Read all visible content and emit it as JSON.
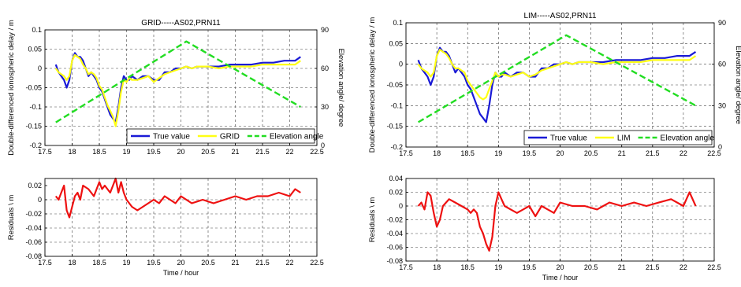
{
  "chart_data": [
    {
      "type": "line",
      "panel": "left-top",
      "title": "GRID-----AS02,PRN11",
      "xlabel": "",
      "ylabel": "Double-differenced ionospheric delay / m",
      "ylabel_right": "Elevation angle/ degree",
      "xlim": [
        17.5,
        22.5
      ],
      "ylim": [
        -0.2,
        0.1
      ],
      "ylim_right": [
        0,
        90
      ],
      "xticks": [
        "17.5",
        "18",
        "18.5",
        "19",
        "19.5",
        "20",
        "20.5",
        "21",
        "21.5",
        "22",
        "22.5"
      ],
      "yticks": [
        "-0.2",
        "-0.15",
        "-0.1",
        "-0.05",
        "0",
        "0.05",
        "0.1"
      ],
      "yticks_right": [
        "0",
        "30",
        "60",
        "90"
      ],
      "grid": true,
      "legend_position": "bottom-right",
      "series": [
        {
          "name": "True value",
          "color": "#1a1ad6",
          "axis": "left",
          "x": [
            17.7,
            17.75,
            17.8,
            17.85,
            17.9,
            17.95,
            18.0,
            18.05,
            18.1,
            18.15,
            18.2,
            18.25,
            18.3,
            18.35,
            18.4,
            18.45,
            18.5,
            18.55,
            18.6,
            18.65,
            18.7,
            18.75,
            18.8,
            18.85,
            18.9,
            18.95,
            19.0,
            19.05,
            19.1,
            19.2,
            19.3,
            19.4,
            19.5,
            19.6,
            19.7,
            19.8,
            19.9,
            20.0,
            20.1,
            20.2,
            20.3,
            20.5,
            20.7,
            20.9,
            21.1,
            21.3,
            21.5,
            21.7,
            21.9,
            22.1,
            22.2
          ],
          "y": [
            0.01,
            -0.01,
            -0.02,
            -0.03,
            -0.05,
            -0.03,
            0.02,
            0.04,
            0.03,
            0.03,
            0.02,
            0.0,
            -0.02,
            -0.01,
            -0.02,
            -0.03,
            -0.05,
            -0.06,
            -0.08,
            -0.1,
            -0.12,
            -0.13,
            -0.14,
            -0.1,
            -0.05,
            -0.02,
            -0.03,
            -0.03,
            -0.02,
            -0.03,
            -0.02,
            -0.02,
            -0.03,
            -0.03,
            -0.01,
            -0.01,
            0.0,
            0.0,
            0.005,
            0.0,
            0.005,
            0.005,
            0.005,
            0.01,
            0.01,
            0.01,
            0.015,
            0.015,
            0.02,
            0.02,
            0.03
          ]
        },
        {
          "name": "GRID",
          "color": "#ffff14",
          "axis": "left",
          "x": [
            17.7,
            17.75,
            17.8,
            17.85,
            17.9,
            17.95,
            18.0,
            18.05,
            18.1,
            18.15,
            18.2,
            18.25,
            18.3,
            18.35,
            18.4,
            18.45,
            18.5,
            18.55,
            18.6,
            18.65,
            18.7,
            18.75,
            18.8,
            18.85,
            18.9,
            18.95,
            19.0,
            19.05,
            19.1,
            19.2,
            19.3,
            19.4,
            19.5,
            19.6,
            19.7,
            19.8,
            19.9,
            20.0,
            20.1,
            20.2,
            20.3,
            20.5,
            20.7,
            20.9,
            21.1,
            21.3,
            21.5,
            21.7,
            21.9,
            22.1,
            22.2
          ],
          "y": [
            0.0,
            -0.01,
            -0.015,
            -0.02,
            -0.03,
            -0.02,
            0.02,
            0.035,
            0.03,
            0.025,
            0.01,
            0.0,
            -0.015,
            -0.01,
            -0.015,
            -0.025,
            -0.045,
            -0.055,
            -0.075,
            -0.095,
            -0.11,
            -0.125,
            -0.15,
            -0.11,
            -0.06,
            -0.03,
            -0.035,
            -0.025,
            -0.03,
            -0.03,
            -0.025,
            -0.02,
            -0.035,
            -0.025,
            -0.015,
            -0.01,
            -0.005,
            0.0,
            0.005,
            0.0,
            0.005,
            0.005,
            0.0,
            0.005,
            0.005,
            0.005,
            0.01,
            0.01,
            0.01,
            0.01,
            0.02
          ]
        },
        {
          "name": "Elevation angle",
          "color": "#22dd22",
          "axis": "right",
          "dashed": true,
          "x": [
            17.7,
            20.1,
            22.2
          ],
          "y": [
            18,
            81,
            30
          ]
        }
      ]
    },
    {
      "type": "line",
      "panel": "left-bottom",
      "title": "",
      "xlabel": "Time / hour",
      "ylabel": "Residuals \\ m",
      "xlim": [
        17.5,
        22.5
      ],
      "ylim": [
        -0.08,
        0.03
      ],
      "xticks": [
        "17.5",
        "18",
        "18.5",
        "19",
        "19.5",
        "20",
        "20.5",
        "21",
        "21.5",
        "22",
        "22.5"
      ],
      "yticks": [
        "-0.08",
        "-0.06",
        "-0.04",
        "-0.02",
        "0",
        "0.02"
      ],
      "grid": true,
      "series": [
        {
          "color": "#ee1111",
          "x": [
            17.7,
            17.75,
            17.8,
            17.85,
            17.9,
            17.95,
            18.0,
            18.05,
            18.1,
            18.15,
            18.2,
            18.3,
            18.4,
            18.5,
            18.55,
            18.6,
            18.7,
            18.75,
            18.8,
            18.85,
            18.9,
            18.95,
            19.0,
            19.05,
            19.1,
            19.2,
            19.3,
            19.4,
            19.5,
            19.6,
            19.7,
            19.8,
            19.9,
            20.0,
            20.2,
            20.4,
            20.6,
            20.8,
            21.0,
            21.2,
            21.4,
            21.6,
            21.8,
            22.0,
            22.1,
            22.2
          ],
          "y": [
            0.005,
            0.0,
            0.01,
            0.02,
            -0.015,
            -0.025,
            -0.01,
            0.005,
            0.01,
            0.0,
            0.02,
            0.015,
            0.005,
            0.025,
            0.015,
            0.02,
            0.01,
            0.02,
            0.03,
            0.01,
            0.025,
            0.01,
            0.0,
            -0.005,
            -0.01,
            -0.015,
            -0.01,
            -0.005,
            0.0,
            -0.005,
            0.005,
            0.0,
            -0.005,
            0.005,
            -0.005,
            0.0,
            -0.005,
            0.0,
            0.005,
            0.0,
            0.005,
            0.005,
            0.01,
            0.005,
            0.015,
            0.01
          ]
        }
      ]
    },
    {
      "type": "line",
      "panel": "right-top",
      "title": "LIM-----AS02,PRN11",
      "xlabel": "",
      "ylabel": "Double-differenced ionospheric delay / m",
      "ylabel_right": "Elevation angle/ degree",
      "xlim": [
        17.5,
        22.5
      ],
      "ylim": [
        -0.2,
        0.1
      ],
      "ylim_right": [
        0,
        90
      ],
      "xticks": [
        "17.5",
        "18",
        "18.5",
        "19",
        "19.5",
        "20",
        "20.5",
        "21",
        "21.5",
        "22",
        "22.5"
      ],
      "yticks": [
        "-0.2",
        "-0.15",
        "-0.1",
        "-0.05",
        "0",
        "0.05",
        "0.1"
      ],
      "yticks_right": [
        "0",
        "30",
        "60",
        "90"
      ],
      "grid": true,
      "legend_position": "bottom-right",
      "series": [
        {
          "name": "True value",
          "color": "#1a1ad6",
          "axis": "left",
          "x": [
            17.7,
            17.75,
            17.8,
            17.85,
            17.9,
            17.95,
            18.0,
            18.05,
            18.1,
            18.15,
            18.2,
            18.25,
            18.3,
            18.35,
            18.4,
            18.45,
            18.5,
            18.55,
            18.6,
            18.65,
            18.7,
            18.75,
            18.8,
            18.85,
            18.9,
            18.95,
            19.0,
            19.05,
            19.1,
            19.2,
            19.3,
            19.4,
            19.5,
            19.6,
            19.7,
            19.8,
            19.9,
            20.0,
            20.1,
            20.2,
            20.3,
            20.5,
            20.7,
            20.9,
            21.1,
            21.3,
            21.5,
            21.7,
            21.9,
            22.1,
            22.2
          ],
          "y": [
            0.01,
            -0.01,
            -0.02,
            -0.03,
            -0.05,
            -0.03,
            0.02,
            0.04,
            0.03,
            0.03,
            0.02,
            0.0,
            -0.02,
            -0.01,
            -0.02,
            -0.03,
            -0.05,
            -0.06,
            -0.08,
            -0.1,
            -0.12,
            -0.13,
            -0.14,
            -0.1,
            -0.05,
            -0.02,
            -0.03,
            -0.03,
            -0.02,
            -0.03,
            -0.02,
            -0.02,
            -0.03,
            -0.03,
            -0.01,
            -0.01,
            0.0,
            0.0,
            0.005,
            0.0,
            0.005,
            0.005,
            0.005,
            0.01,
            0.01,
            0.01,
            0.015,
            0.015,
            0.02,
            0.02,
            0.03
          ]
        },
        {
          "name": "LIM",
          "color": "#ffff14",
          "axis": "left",
          "x": [
            17.7,
            17.75,
            17.8,
            17.85,
            17.9,
            17.95,
            18.0,
            18.05,
            18.1,
            18.15,
            18.2,
            18.25,
            18.3,
            18.35,
            18.4,
            18.45,
            18.5,
            18.55,
            18.6,
            18.65,
            18.7,
            18.75,
            18.8,
            18.85,
            18.9,
            18.95,
            19.0,
            19.05,
            19.1,
            19.2,
            19.3,
            19.4,
            19.5,
            19.6,
            19.7,
            19.8,
            19.9,
            20.0,
            20.1,
            20.2,
            20.3,
            20.5,
            20.7,
            20.9,
            21.1,
            21.3,
            21.5,
            21.7,
            21.9,
            22.1,
            22.2
          ],
          "y": [
            0.0,
            -0.01,
            -0.015,
            -0.02,
            -0.03,
            -0.02,
            0.02,
            0.035,
            0.03,
            0.025,
            0.015,
            0.0,
            -0.01,
            -0.01,
            -0.015,
            -0.02,
            -0.04,
            -0.05,
            -0.06,
            -0.07,
            -0.08,
            -0.085,
            -0.08,
            -0.06,
            -0.04,
            -0.02,
            -0.03,
            -0.025,
            -0.025,
            -0.03,
            -0.025,
            -0.02,
            -0.03,
            -0.025,
            -0.015,
            -0.01,
            -0.005,
            0.0,
            0.005,
            0.0,
            0.005,
            0.005,
            0.0,
            0.005,
            0.005,
            0.005,
            0.01,
            0.01,
            0.01,
            0.01,
            0.02
          ]
        },
        {
          "name": "Elevation angle",
          "color": "#22dd22",
          "axis": "right",
          "dashed": true,
          "x": [
            17.7,
            20.1,
            22.2
          ],
          "y": [
            18,
            81,
            30
          ]
        }
      ]
    },
    {
      "type": "line",
      "panel": "right-bottom",
      "title": "",
      "xlabel": "Time / hour",
      "ylabel": "Residuals \\ m",
      "xlim": [
        17.5,
        22.5
      ],
      "ylim": [
        -0.08,
        0.04
      ],
      "xticks": [
        "17.5",
        "18",
        "18.5",
        "19",
        "19.5",
        "20",
        "20.5",
        "21",
        "21.5",
        "22",
        "22.5"
      ],
      "yticks": [
        "-0.08",
        "-0.06",
        "-0.04",
        "-0.02",
        "0",
        "0.02",
        "0.04"
      ],
      "grid": true,
      "series": [
        {
          "color": "#ee1111",
          "x": [
            17.7,
            17.75,
            17.8,
            17.85,
            17.9,
            17.95,
            18.0,
            18.05,
            18.1,
            18.15,
            18.2,
            18.3,
            18.4,
            18.5,
            18.55,
            18.6,
            18.65,
            18.7,
            18.75,
            18.8,
            18.85,
            18.9,
            18.95,
            19.0,
            19.05,
            19.1,
            19.2,
            19.3,
            19.4,
            19.5,
            19.6,
            19.7,
            19.8,
            19.9,
            20.0,
            20.2,
            20.4,
            20.6,
            20.8,
            21.0,
            21.2,
            21.4,
            21.6,
            21.8,
            22.0,
            22.1,
            22.2
          ],
          "y": [
            0.0,
            0.005,
            -0.005,
            0.02,
            0.015,
            -0.01,
            -0.03,
            -0.02,
            0.0,
            0.005,
            0.01,
            0.005,
            0.0,
            -0.005,
            -0.01,
            -0.005,
            -0.01,
            -0.03,
            -0.04,
            -0.055,
            -0.065,
            -0.045,
            0.0,
            0.02,
            0.01,
            0.0,
            -0.005,
            -0.01,
            -0.005,
            0.0,
            -0.015,
            0.0,
            -0.005,
            -0.01,
            0.005,
            0.0,
            0.0,
            -0.005,
            0.005,
            0.0,
            0.005,
            0.0,
            0.005,
            0.01,
            0.0,
            0.02,
            0.0
          ]
        }
      ]
    }
  ]
}
